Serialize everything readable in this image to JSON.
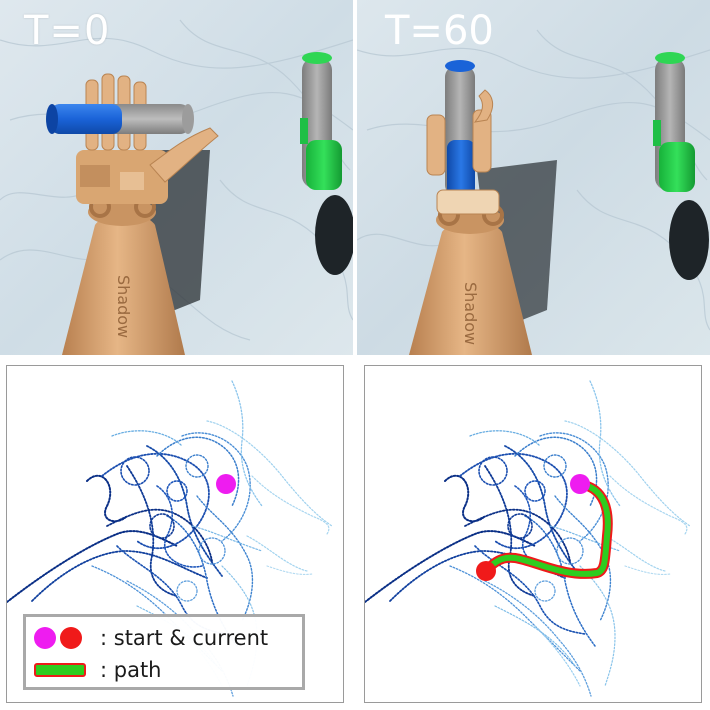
{
  "frames": [
    {
      "label": "T=0",
      "arm_text": "Shadow"
    },
    {
      "label": "T=60",
      "arm_text": "Shadow"
    }
  ],
  "legend": {
    "start_current": ": start & current",
    "path": ": path"
  },
  "colors": {
    "start": "#ee1cf0",
    "current": "#f01a1a",
    "path_fill": "#2ecc1f",
    "path_edge": "#ee1a1a",
    "trajectory_dark": "#0a2f86",
    "trajectory_light": "#9fd1ee",
    "background_marble": "#d9e4ea",
    "hand": "#dca876",
    "cylinder_grey": "#9a9a9a",
    "cylinder_blue": "#1a63d8",
    "cylinder_green": "#22d24a"
  },
  "icons": [
    "start-marker-icon",
    "current-marker-icon",
    "path-swatch-icon"
  ]
}
